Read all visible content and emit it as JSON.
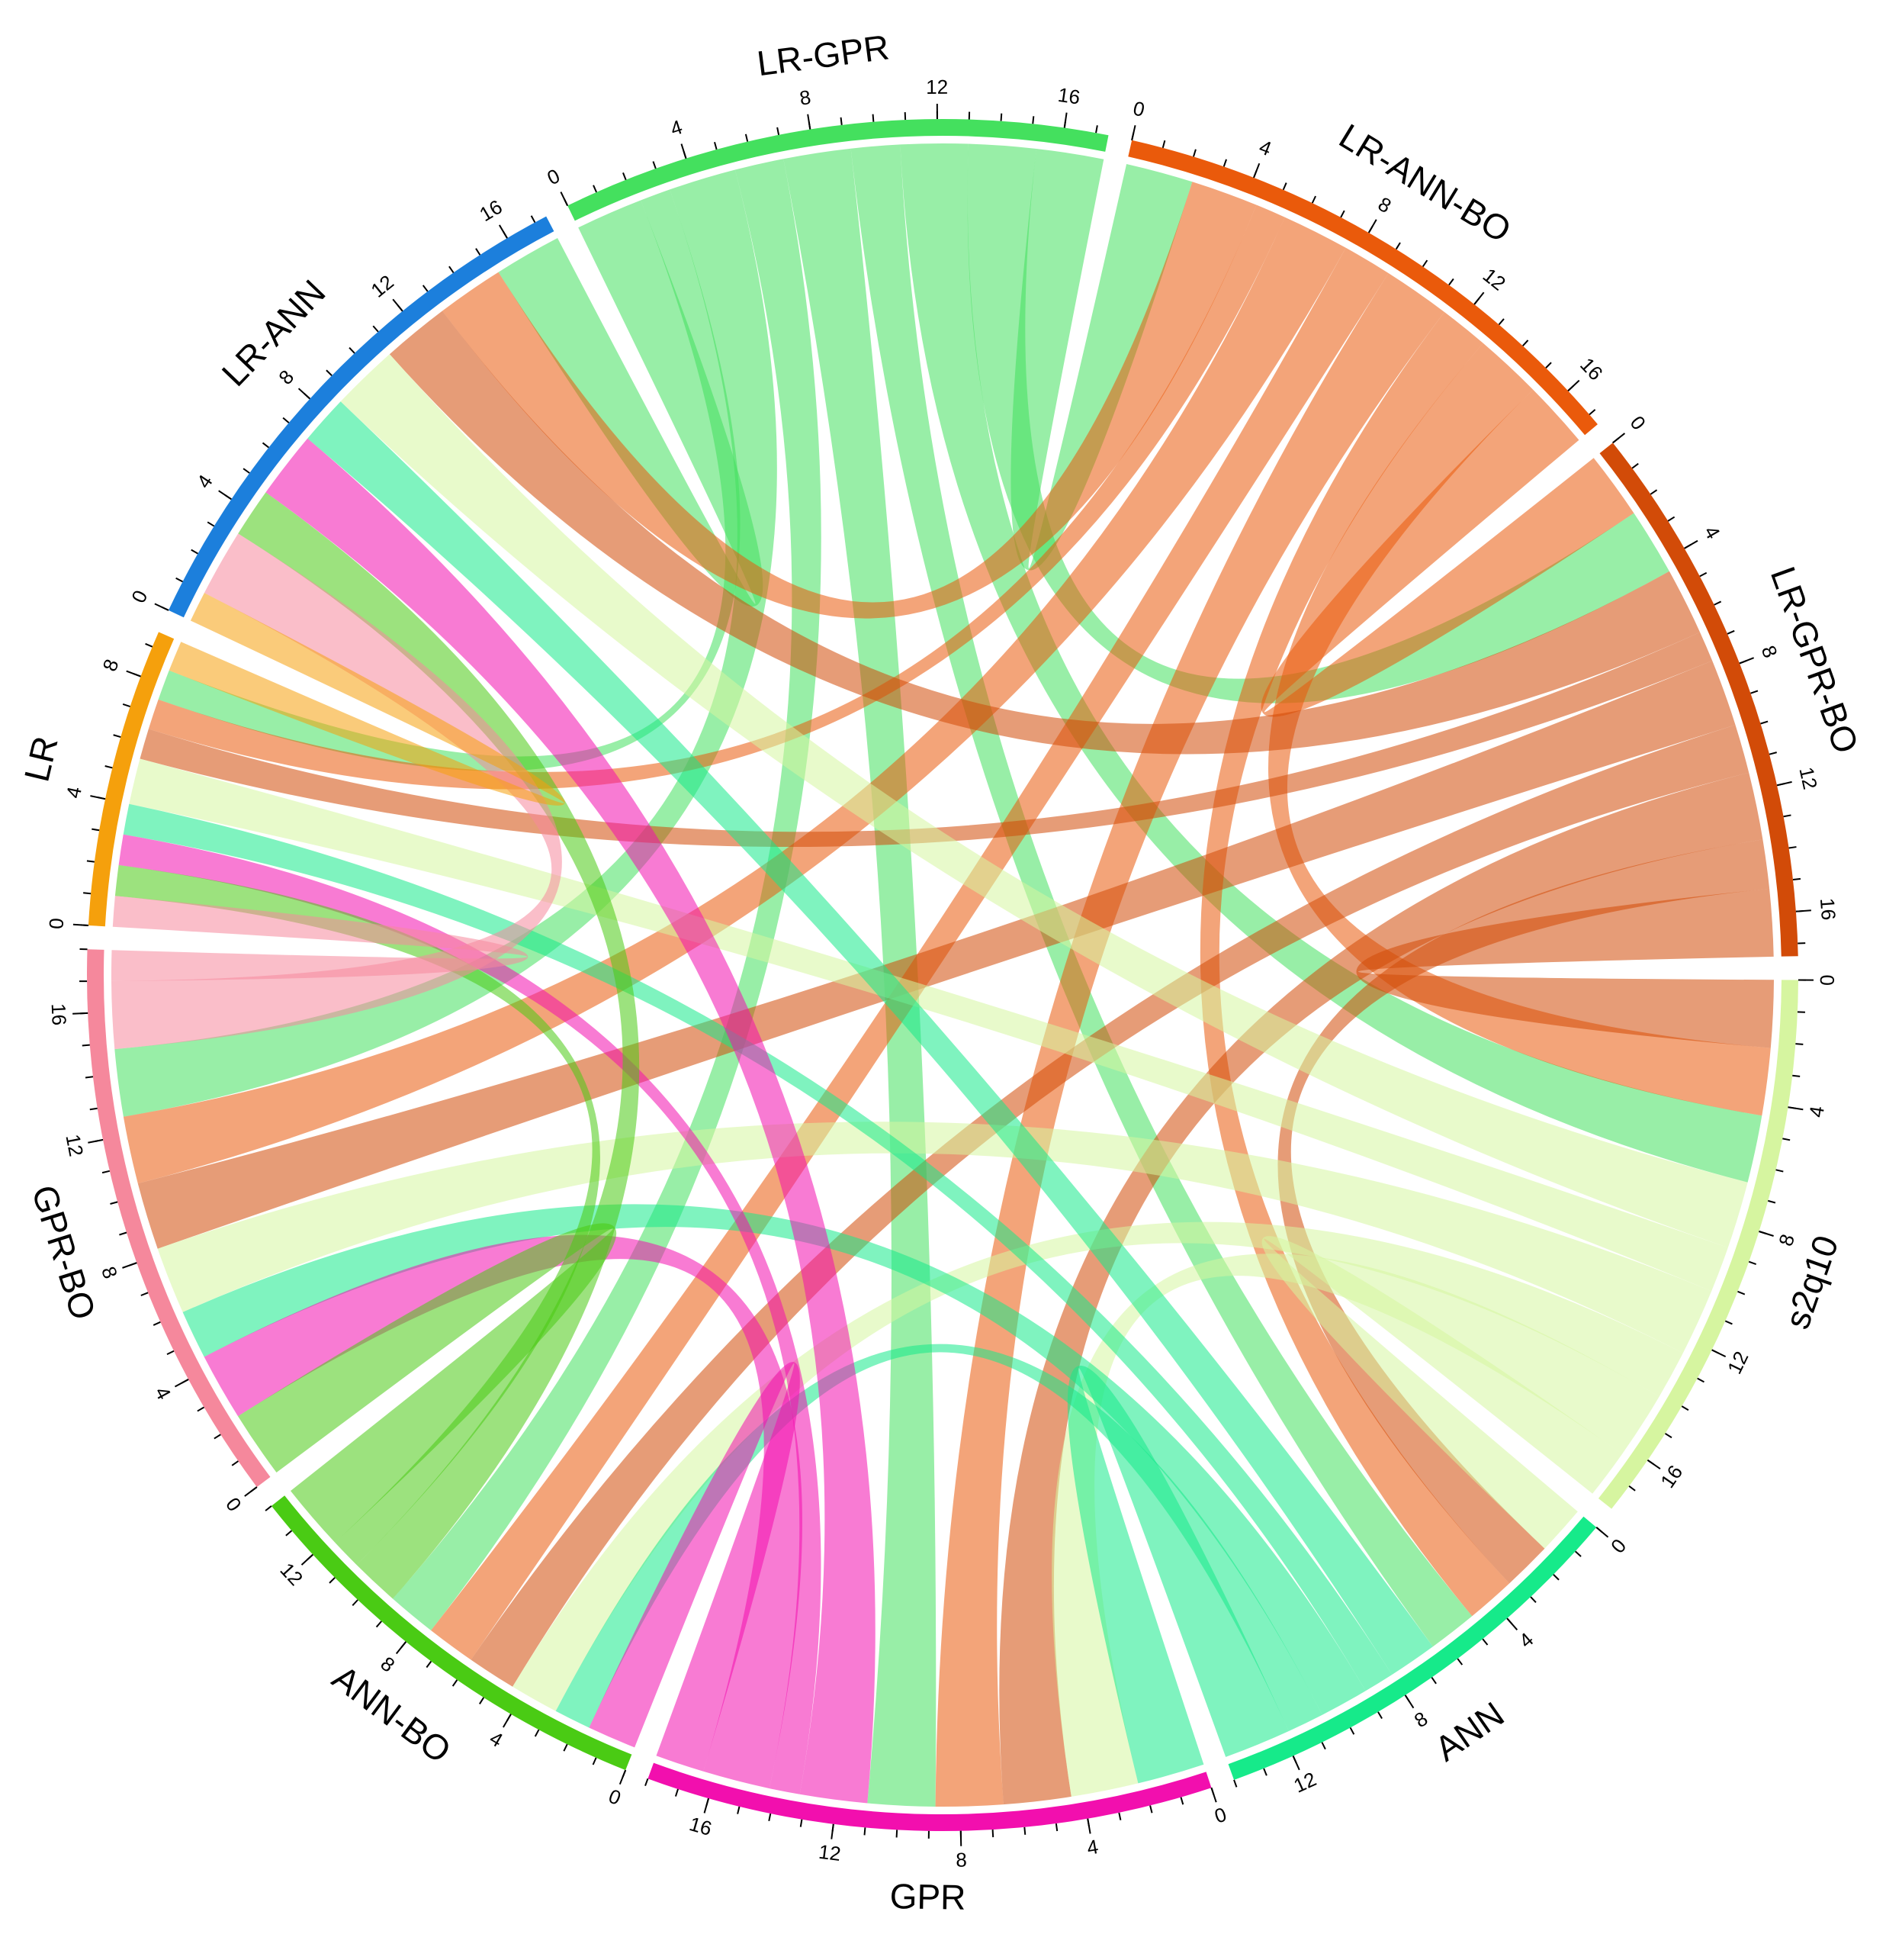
{
  "chart_data": {
    "type": "chord",
    "sectors": [
      {
        "name": "LR-GPR",
        "color": "#44e05e",
        "ticks": [
          0,
          4,
          8,
          12,
          16
        ]
      },
      {
        "name": "LR-ANN-BO",
        "color": "#ea5a0b",
        "ticks": [
          0,
          4,
          8,
          12,
          16
        ]
      },
      {
        "name": "LR-GPR-BO",
        "color": "#d24b08",
        "ticks": [
          0,
          4,
          8,
          12,
          16
        ]
      },
      {
        "name": "s2q10",
        "color": "#d6f5a0",
        "ticks": [
          0,
          4,
          8,
          12,
          16
        ]
      },
      {
        "name": "ANN",
        "color": "#16ea8a",
        "ticks": [
          0,
          4,
          8,
          12
        ]
      },
      {
        "name": "GPR",
        "color": "#f20fae",
        "ticks": [
          0,
          4,
          8,
          12,
          16
        ]
      },
      {
        "name": "ANN-BO",
        "color": "#4acb14",
        "ticks": [
          0,
          4,
          8,
          12
        ]
      },
      {
        "name": "GPR-BO",
        "color": "#f5889c",
        "ticks": [
          0,
          4,
          8,
          12,
          16
        ]
      },
      {
        "name": "LR",
        "color": "#f5a00c",
        "ticks": [
          0,
          4,
          8
        ]
      },
      {
        "name": "LR-ANN",
        "color": "#1c7fdc",
        "ticks": [
          0,
          4,
          8,
          12,
          16
        ]
      }
    ],
    "minor_tick_step": 1,
    "links": [
      {
        "source": "LR-GPR",
        "target": "LR-ANN-BO",
        "value": 2.2
      },
      {
        "source": "LR-GPR",
        "target": "LR-GPR-BO",
        "value": 2.2
      },
      {
        "source": "LR-GPR",
        "target": "s2q10",
        "value": 2.2
      },
      {
        "source": "LR-GPR",
        "target": "ANN",
        "value": 1.6
      },
      {
        "source": "LR-GPR",
        "target": "GPR",
        "value": 2.2
      },
      {
        "source": "LR-GPR",
        "target": "ANN-BO",
        "value": 1.6
      },
      {
        "source": "LR-GPR",
        "target": "GPR-BO",
        "value": 2.2
      },
      {
        "source": "LR-GPR",
        "target": "LR",
        "value": 1
      },
      {
        "source": "LR-GPR",
        "target": "LR-ANN",
        "value": 2.2
      },
      {
        "source": "LR-ANN-BO",
        "target": "LR-GPR-BO",
        "value": 2.2
      },
      {
        "source": "LR-ANN-BO",
        "target": "s2q10",
        "value": 2.2
      },
      {
        "source": "LR-ANN-BO",
        "target": "ANN",
        "value": 1.6
      },
      {
        "source": "LR-ANN-BO",
        "target": "GPR",
        "value": 2.2
      },
      {
        "source": "LR-ANN-BO",
        "target": "ANN-BO",
        "value": 1.6
      },
      {
        "source": "LR-ANN-BO",
        "target": "GPR-BO",
        "value": 2.2
      },
      {
        "source": "LR-ANN-BO",
        "target": "LR",
        "value": 1
      },
      {
        "source": "LR-ANN-BO",
        "target": "LR-ANN",
        "value": 2.2
      },
      {
        "source": "LR-GPR-BO",
        "target": "s2q10",
        "value": 2.2
      },
      {
        "source": "LR-GPR-BO",
        "target": "ANN",
        "value": 1.6
      },
      {
        "source": "LR-GPR-BO",
        "target": "GPR",
        "value": 2.2
      },
      {
        "source": "LR-GPR-BO",
        "target": "ANN-BO",
        "value": 1.6
      },
      {
        "source": "LR-GPR-BO",
        "target": "GPR-BO",
        "value": 2.2
      },
      {
        "source": "LR-GPR-BO",
        "target": "LR",
        "value": 1
      },
      {
        "source": "LR-GPR-BO",
        "target": "LR-ANN",
        "value": 2.2
      },
      {
        "source": "s2q10",
        "target": "ANN",
        "value": 1.6
      },
      {
        "source": "s2q10",
        "target": "GPR",
        "value": 2.2
      },
      {
        "source": "s2q10",
        "target": "ANN-BO",
        "value": 1.6
      },
      {
        "source": "s2q10",
        "target": "GPR-BO",
        "value": 2.2
      },
      {
        "source": "s2q10",
        "target": "LR",
        "value": 1.5
      },
      {
        "source": "s2q10",
        "target": "LR-ANN",
        "value": 2.2
      },
      {
        "source": "ANN",
        "target": "GPR",
        "value": 2.2
      },
      {
        "source": "ANN",
        "target": "ANN-BO",
        "value": 1.2
      },
      {
        "source": "ANN",
        "target": "GPR-BO",
        "value": 1.6
      },
      {
        "source": "ANN",
        "target": "LR",
        "value": 1
      },
      {
        "source": "ANN",
        "target": "LR-ANN",
        "value": 1.6
      },
      {
        "source": "GPR",
        "target": "ANN-BO",
        "value": 1.6
      },
      {
        "source": "GPR",
        "target": "GPR-BO",
        "value": 2.2
      },
      {
        "source": "GPR",
        "target": "LR",
        "value": 1
      },
      {
        "source": "GPR",
        "target": "LR-ANN",
        "value": 2.2
      },
      {
        "source": "ANN-BO",
        "target": "GPR-BO",
        "value": 2.2
      },
      {
        "source": "ANN-BO",
        "target": "LR",
        "value": 1
      },
      {
        "source": "ANN-BO",
        "target": "LR-ANN",
        "value": 1.6
      },
      {
        "source": "GPR-BO",
        "target": "LR",
        "value": 1
      },
      {
        "source": "GPR-BO",
        "target": "LR-ANN",
        "value": 2.2
      },
      {
        "source": "LR",
        "target": "LR-ANN",
        "value": 1
      }
    ]
  }
}
